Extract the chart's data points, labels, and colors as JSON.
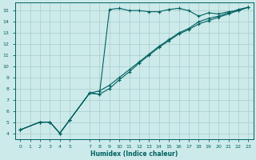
{
  "bg_color": "#cceaea",
  "grid_color": "#aacccc",
  "line_color": "#006060",
  "xlabel": "Humidex (Indice chaleur)",
  "xlim": [
    -0.5,
    23.5
  ],
  "ylim": [
    3.5,
    15.7
  ],
  "yticks": [
    4,
    5,
    6,
    7,
    8,
    9,
    10,
    11,
    12,
    13,
    14,
    15
  ],
  "xticks": [
    0,
    1,
    2,
    3,
    4,
    5,
    7,
    8,
    9,
    10,
    11,
    12,
    13,
    14,
    15,
    16,
    17,
    18,
    19,
    20,
    21,
    22,
    23
  ],
  "curve1_x": [
    0,
    2,
    3,
    4,
    5,
    7,
    8,
    9,
    10,
    11,
    12,
    13,
    14,
    15,
    16,
    17,
    18,
    19,
    20,
    21,
    22,
    23
  ],
  "curve1_y": [
    4.3,
    5.0,
    5.0,
    4.0,
    5.2,
    7.6,
    7.5,
    15.1,
    15.2,
    15.0,
    15.0,
    14.9,
    14.9,
    15.1,
    15.2,
    15.0,
    14.5,
    14.8,
    14.7,
    14.9,
    15.0,
    15.3
  ],
  "curve2_x": [
    0,
    2,
    3,
    4,
    5,
    7,
    8,
    9,
    10,
    11,
    12,
    13,
    14,
    15,
    16,
    17,
    18,
    19,
    20,
    21,
    22,
    23
  ],
  "curve2_y": [
    4.3,
    5.0,
    5.0,
    4.0,
    5.2,
    7.6,
    7.5,
    8.0,
    8.8,
    9.5,
    10.3,
    11.0,
    11.7,
    12.3,
    12.9,
    13.3,
    13.8,
    14.1,
    14.4,
    14.7,
    15.0,
    15.3
  ],
  "curve3_x": [
    0,
    2,
    3,
    4,
    5,
    7,
    8,
    9,
    10,
    11,
    12,
    13,
    14,
    15,
    16,
    17,
    18,
    19,
    20,
    21,
    22,
    23
  ],
  "curve3_y": [
    4.3,
    5.0,
    5.0,
    4.0,
    5.2,
    7.6,
    7.8,
    8.3,
    9.0,
    9.7,
    10.4,
    11.1,
    11.8,
    12.4,
    13.0,
    13.4,
    14.0,
    14.3,
    14.5,
    14.8,
    15.1,
    15.3
  ]
}
